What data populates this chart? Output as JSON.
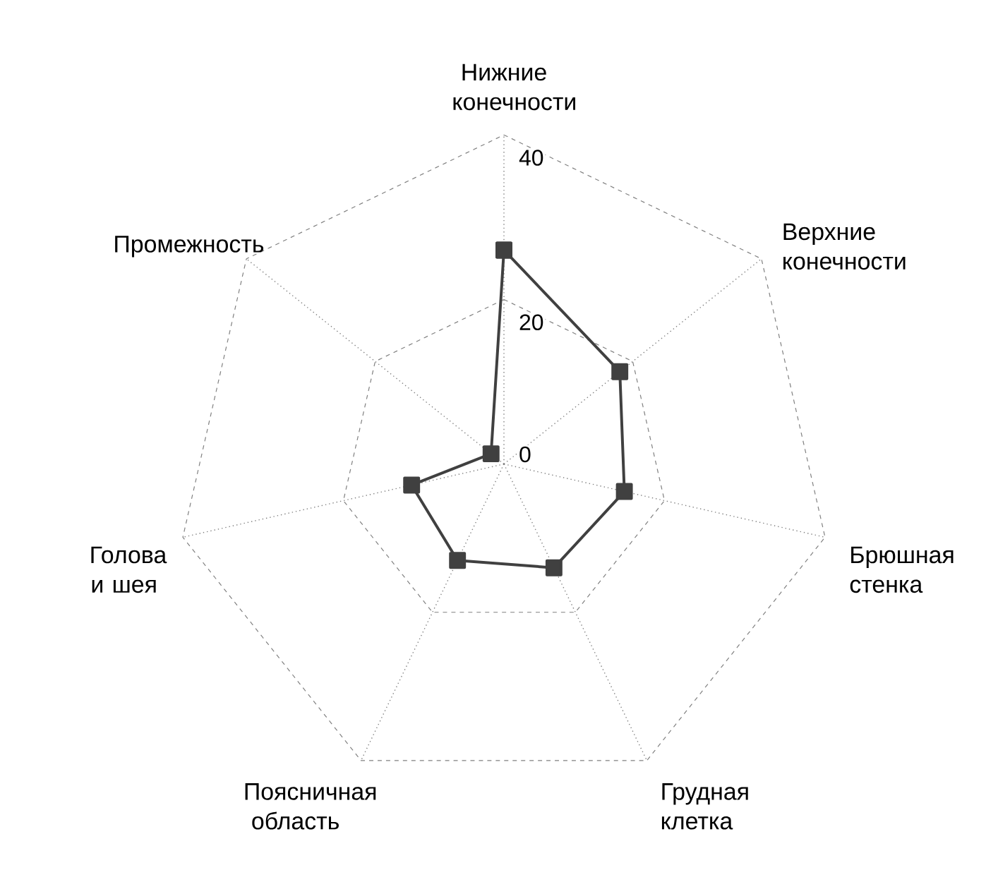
{
  "chart_data": {
    "type": "radar",
    "categories": [
      "Нижние конечности",
      "Верхние конечности",
      "Брюшная стенка",
      "Грудная клетка",
      "Поясничная область",
      "Голова и шея",
      "Промежность"
    ],
    "series": [
      {
        "color": "#404040",
        "values": [
          26,
          18,
          15,
          14,
          13,
          11.5,
          2
        ]
      }
    ],
    "ylim": [
      0,
      40
    ],
    "yticks": [
      0,
      20,
      40
    ],
    "grid": true,
    "marker": "square",
    "line_style": "solid"
  }
}
